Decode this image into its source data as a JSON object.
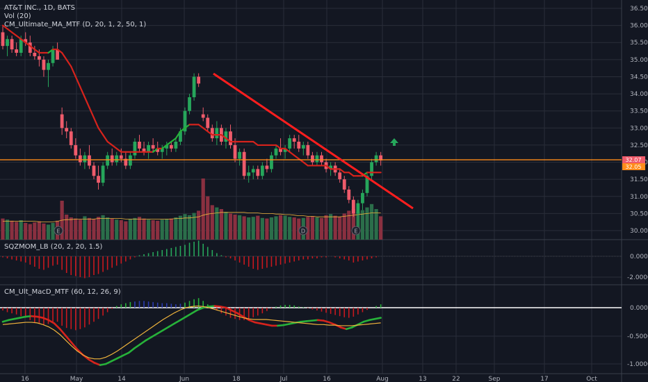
{
  "header": {
    "symbol_line": "AT&T INC., 1D, BATS",
    "vol_line": "Vol (20)",
    "ma_line": "CM_Ultimate_MA_MTF (D, 20, 1, 2, 50, 1)"
  },
  "panes": {
    "sqzmom": {
      "label": "SQZMOM_LB (20, 2, 20, 1.5)",
      "ticks": [
        "0.0000",
        "-2.0000"
      ]
    },
    "macd": {
      "label": "CM_Ult_MacD_MTF (60, 12, 26, 9)",
      "ticks": [
        "0.0000",
        "-0.5000",
        "-1.0000"
      ]
    }
  },
  "price_axis": {
    "ticks": [
      "36.50",
      "36.00",
      "35.50",
      "35.00",
      "34.50",
      "34.00",
      "33.50",
      "33.00",
      "32.50",
      "32.00",
      "31.50",
      "31.00",
      "30.50",
      "30.00"
    ],
    "tag_upper": "32.07",
    "tag_lower": "32.05"
  },
  "time_axis": {
    "ticks": [
      "16",
      "May",
      "14",
      "Jun",
      "18",
      "Jul",
      "16",
      "Aug",
      "13",
      "22",
      "Sep",
      "17",
      "Oct"
    ]
  },
  "events": [
    "E",
    "D",
    "E"
  ],
  "colors": {
    "background": "#131722",
    "up": "#26a65b",
    "down": "#ef5b6b",
    "ma_red": "#d6231c",
    "ma_green": "#27b23a",
    "trendline": "#ff1e1e",
    "horizontal": "#ff8c1a",
    "macd_signal": "#f0b43c",
    "volume_up": "#2b6e4a",
    "volume_down": "#8a3040"
  },
  "chart_data": {
    "type": "candlestick",
    "symbol": "AT&T INC.",
    "interval": "1D",
    "price_range": [
      29.8,
      36.8
    ],
    "horizontal_level": 32.07,
    "arrow_up_at": 32.55,
    "candles": [
      [
        35.8,
        36.0,
        35.3,
        35.4
      ],
      [
        35.4,
        35.7,
        35.1,
        35.6
      ],
      [
        35.6,
        35.7,
        35.2,
        35.3
      ],
      [
        35.3,
        35.5,
        35.1,
        35.2
      ],
      [
        35.2,
        35.7,
        35.1,
        35.6
      ],
      [
        35.6,
        35.8,
        35.4,
        35.5
      ],
      [
        35.5,
        35.7,
        35.1,
        35.2
      ],
      [
        35.2,
        35.4,
        35.0,
        35.1
      ],
      [
        35.1,
        35.3,
        34.8,
        35.0
      ],
      [
        35.0,
        35.1,
        34.5,
        34.7
      ],
      [
        34.7,
        35.0,
        34.2,
        34.9
      ],
      [
        34.9,
        35.4,
        34.8,
        35.3
      ],
      [
        35.3,
        35.5,
        35.0,
        35.0
      ],
      [
        33.4,
        33.6,
        32.8,
        33.0
      ],
      [
        33.0,
        33.2,
        32.7,
        32.9
      ],
      [
        32.9,
        33.0,
        32.4,
        32.5
      ],
      [
        32.5,
        32.7,
        32.1,
        32.2
      ],
      [
        32.2,
        32.4,
        31.9,
        32.0
      ],
      [
        32.0,
        32.3,
        31.8,
        32.2
      ],
      [
        32.2,
        32.5,
        31.8,
        31.9
      ],
      [
        31.9,
        32.0,
        31.5,
        31.6
      ],
      [
        31.6,
        31.9,
        31.2,
        31.4
      ],
      [
        31.4,
        32.0,
        31.3,
        31.9
      ],
      [
        31.9,
        32.3,
        31.8,
        32.2
      ],
      [
        32.2,
        32.4,
        31.9,
        32.0
      ],
      [
        32.0,
        32.3,
        31.9,
        32.2
      ],
      [
        32.2,
        32.4,
        32.0,
        32.1
      ],
      [
        32.1,
        32.3,
        31.8,
        31.9
      ],
      [
        31.9,
        32.3,
        31.8,
        32.2
      ],
      [
        32.2,
        32.7,
        32.1,
        32.6
      ],
      [
        32.6,
        32.8,
        32.3,
        32.4
      ],
      [
        32.4,
        32.6,
        32.2,
        32.3
      ],
      [
        32.3,
        32.6,
        32.1,
        32.5
      ],
      [
        32.5,
        32.7,
        32.3,
        32.4
      ],
      [
        32.4,
        32.6,
        32.2,
        32.3
      ],
      [
        32.3,
        32.5,
        32.1,
        32.4
      ],
      [
        32.4,
        32.6,
        32.2,
        32.5
      ],
      [
        32.5,
        32.6,
        32.3,
        32.4
      ],
      [
        32.4,
        32.7,
        32.3,
        32.6
      ],
      [
        32.6,
        33.0,
        32.5,
        32.9
      ],
      [
        32.9,
        33.6,
        32.8,
        33.5
      ],
      [
        33.5,
        34.0,
        33.4,
        33.9
      ],
      [
        33.9,
        34.6,
        33.8,
        34.5
      ],
      [
        34.5,
        34.6,
        34.2,
        34.3
      ],
      [
        33.4,
        33.6,
        33.2,
        33.3
      ],
      [
        33.3,
        33.4,
        32.9,
        33.0
      ],
      [
        33.0,
        33.1,
        32.6,
        32.7
      ],
      [
        32.7,
        33.2,
        32.5,
        33.0
      ],
      [
        33.0,
        33.1,
        32.5,
        32.6
      ],
      [
        32.6,
        33.0,
        32.4,
        32.9
      ],
      [
        32.9,
        33.1,
        32.4,
        32.5
      ],
      [
        32.5,
        32.7,
        32.0,
        32.1
      ],
      [
        32.1,
        32.4,
        31.9,
        32.3
      ],
      [
        32.3,
        32.4,
        31.5,
        31.6
      ],
      [
        31.6,
        31.9,
        31.4,
        31.7
      ],
      [
        31.7,
        31.9,
        31.5,
        31.8
      ],
      [
        31.8,
        31.9,
        31.5,
        31.6
      ],
      [
        31.6,
        32.0,
        31.5,
        31.9
      ],
      [
        31.9,
        32.1,
        31.7,
        31.8
      ],
      [
        31.8,
        32.3,
        31.7,
        32.2
      ],
      [
        32.2,
        32.5,
        32.1,
        32.4
      ],
      [
        32.4,
        32.7,
        32.2,
        32.3
      ],
      [
        32.3,
        32.5,
        32.1,
        32.4
      ],
      [
        32.4,
        32.8,
        32.3,
        32.7
      ],
      [
        32.7,
        32.8,
        32.4,
        32.6
      ],
      [
        32.6,
        32.8,
        32.3,
        32.4
      ],
      [
        32.4,
        32.6,
        32.2,
        32.5
      ],
      [
        32.5,
        32.6,
        32.1,
        32.2
      ],
      [
        32.2,
        32.3,
        31.9,
        32.0
      ],
      [
        32.0,
        32.3,
        31.9,
        32.2
      ],
      [
        32.2,
        32.3,
        31.9,
        32.0
      ],
      [
        32.0,
        32.1,
        31.7,
        31.8
      ],
      [
        31.8,
        32.0,
        31.6,
        31.9
      ],
      [
        31.9,
        32.0,
        31.6,
        31.7
      ],
      [
        31.7,
        31.8,
        31.4,
        31.5
      ],
      [
        31.5,
        31.6,
        31.1,
        31.2
      ],
      [
        31.2,
        31.3,
        30.8,
        30.9
      ],
      [
        30.9,
        31.0,
        30.4,
        30.5
      ],
      [
        30.5,
        30.9,
        30.0,
        30.8
      ],
      [
        30.8,
        31.2,
        30.6,
        31.1
      ],
      [
        31.1,
        31.7,
        31.0,
        31.6
      ],
      [
        31.6,
        32.1,
        31.5,
        32.0
      ],
      [
        32.0,
        32.3,
        31.9,
        32.2
      ],
      [
        32.2,
        32.3,
        31.9,
        32.05
      ]
    ],
    "volume": [
      38,
      36,
      34,
      32,
      35,
      30,
      28,
      31,
      33,
      29,
      27,
      30,
      34,
      70,
      45,
      40,
      38,
      36,
      42,
      39,
      37,
      41,
      44,
      40,
      38,
      36,
      35,
      33,
      37,
      39,
      41,
      38,
      36,
      35,
      34,
      36,
      37,
      38,
      40,
      43,
      46,
      44,
      48,
      52,
      110,
      78,
      62,
      58,
      55,
      50,
      47,
      45,
      44,
      42,
      40,
      41,
      43,
      39,
      38,
      40,
      42,
      44,
      43,
      41,
      40,
      38,
      39,
      41,
      42,
      40,
      39,
      44,
      46,
      43,
      41,
      47,
      52,
      55,
      50,
      53,
      58,
      64,
      55,
      42
    ],
    "vol_ma": [
      33,
      33,
      33,
      33,
      33,
      33,
      33,
      33,
      32,
      32,
      32,
      32,
      33,
      35,
      36,
      36,
      37,
      37,
      37,
      37,
      37,
      38,
      38,
      38,
      38,
      38,
      38,
      37,
      37,
      37,
      37,
      37,
      37,
      37,
      37,
      37,
      37,
      37,
      38,
      38,
      39,
      39,
      40,
      41,
      44,
      46,
      47,
      48,
      49,
      49,
      49,
      49,
      49,
      49,
      48,
      48,
      48,
      47,
      47,
      47,
      46,
      46,
      45,
      45,
      44,
      43,
      43,
      42,
      42,
      41,
      41,
      41,
      41,
      41,
      41,
      42,
      43,
      44,
      45,
      46,
      47,
      48,
      48,
      48
    ],
    "ma_line": [
      36.0,
      35.9,
      35.8,
      35.7,
      35.6,
      35.5,
      35.4,
      35.3,
      35.2,
      35.2,
      35.2,
      35.3,
      35.3,
      35.2,
      35.0,
      34.8,
      34.5,
      34.2,
      33.9,
      33.6,
      33.3,
      33.0,
      32.8,
      32.6,
      32.5,
      32.4,
      32.3,
      32.3,
      32.3,
      32.3,
      32.3,
      32.3,
      32.3,
      32.3,
      32.4,
      32.4,
      32.5,
      32.6,
      32.7,
      32.9,
      33.0,
      33.1,
      33.1,
      33.1,
      33.0,
      32.9,
      32.8,
      32.8,
      32.8,
      32.7,
      32.6,
      32.6,
      32.6,
      32.6,
      32.6,
      32.6,
      32.5,
      32.5,
      32.5,
      32.5,
      32.5,
      32.4,
      32.4,
      32.3,
      32.2,
      32.1,
      32.0,
      31.9,
      31.9,
      31.9,
      31.9,
      31.9,
      31.8,
      31.8,
      31.8,
      31.7,
      31.7,
      31.6,
      31.6,
      31.6,
      31.7,
      31.7,
      31.7,
      31.7
    ],
    "sqzmom": [
      -0.1,
      -0.2,
      -0.3,
      -0.4,
      -0.5,
      -0.6,
      -0.8,
      -1.0,
      -1.2,
      -1.3,
      -1.1,
      -0.9,
      -0.8,
      -1.3,
      -1.6,
      -1.8,
      -1.9,
      -2.0,
      -2.1,
      -2.0,
      -1.8,
      -1.7,
      -1.5,
      -1.3,
      -1.1,
      -0.9,
      -0.7,
      -0.5,
      -0.3,
      -0.1,
      0.1,
      0.2,
      0.3,
      0.4,
      0.5,
      0.6,
      0.7,
      0.8,
      0.9,
      1.0,
      1.1,
      1.3,
      1.4,
      1.5,
      1.2,
      0.9,
      0.6,
      0.3,
      0.1,
      -0.1,
      -0.2,
      -0.4,
      -0.6,
      -0.8,
      -1.0,
      -1.2,
      -1.3,
      -1.2,
      -1.1,
      -1.0,
      -0.9,
      -0.8,
      -0.7,
      -0.6,
      -0.5,
      -0.4,
      -0.3,
      -0.3,
      -0.2,
      -0.2,
      -0.1,
      -0.1,
      0.0,
      -0.1,
      -0.2,
      -0.3,
      -0.4,
      -0.6,
      -0.5,
      -0.4,
      -0.3,
      -0.2,
      -0.1,
      0.0
    ],
    "macd_hist": [
      -0.05,
      -0.08,
      -0.1,
      -0.12,
      -0.15,
      -0.18,
      -0.22,
      -0.26,
      -0.28,
      -0.3,
      -0.29,
      -0.27,
      -0.25,
      -0.32,
      -0.36,
      -0.38,
      -0.4,
      -0.38,
      -0.35,
      -0.3,
      -0.25,
      -0.2,
      -0.14,
      -0.08,
      -0.02,
      0.03,
      0.06,
      0.08,
      0.1,
      0.11,
      0.12,
      0.12,
      0.11,
      0.1,
      0.09,
      0.08,
      0.08,
      0.07,
      0.06,
      0.07,
      0.09,
      0.12,
      0.15,
      0.17,
      0.12,
      0.06,
      0.0,
      -0.05,
      -0.1,
      -0.14,
      -0.18,
      -0.2,
      -0.22,
      -0.22,
      -0.2,
      -0.17,
      -0.14,
      -0.1,
      -0.06,
      -0.02,
      0.02,
      0.04,
      0.05,
      0.05,
      0.04,
      0.02,
      0.01,
      -0.01,
      -0.03,
      -0.05,
      -0.07,
      -0.09,
      -0.11,
      -0.13,
      -0.15,
      -0.17,
      -0.18,
      -0.16,
      -0.12,
      -0.08,
      -0.04,
      0.0,
      0.03,
      0.06
    ],
    "macd_line": [
      -0.25,
      -0.22,
      -0.2,
      -0.18,
      -0.16,
      -0.15,
      -0.16,
      -0.18,
      -0.22,
      -0.28,
      -0.38,
      -0.5,
      -0.62,
      -0.74,
      -0.84,
      -0.92,
      -0.98,
      -1.02,
      -1.0,
      -0.95,
      -0.9,
      -0.85,
      -0.8,
      -0.72,
      -0.65,
      -0.58,
      -0.52,
      -0.46,
      -0.4,
      -0.34,
      -0.28,
      -0.22,
      -0.16,
      -0.1,
      -0.04,
      0.0,
      0.02,
      0.03,
      0.02,
      0.0,
      -0.05,
      -0.1,
      -0.16,
      -0.22,
      -0.26,
      -0.28,
      -0.3,
      -0.32,
      -0.32,
      -0.31,
      -0.29,
      -0.27,
      -0.25,
      -0.24,
      -0.23,
      -0.22,
      -0.23,
      -0.26,
      -0.3,
      -0.35,
      -0.38,
      -0.35,
      -0.3,
      -0.25,
      -0.22,
      -0.2,
      -0.18
    ],
    "macd_signal": [
      -0.3,
      -0.29,
      -0.28,
      -0.27,
      -0.26,
      -0.26,
      -0.27,
      -0.3,
      -0.34,
      -0.4,
      -0.48,
      -0.58,
      -0.68,
      -0.77,
      -0.84,
      -0.89,
      -0.91,
      -0.91,
      -0.88,
      -0.83,
      -0.77,
      -0.7,
      -0.63,
      -0.56,
      -0.49,
      -0.42,
      -0.35,
      -0.28,
      -0.21,
      -0.15,
      -0.09,
      -0.04,
      0.0,
      0.02,
      0.03,
      0.02,
      0.0,
      -0.03,
      -0.06,
      -0.09,
      -0.12,
      -0.15,
      -0.18,
      -0.2,
      -0.21,
      -0.21,
      -0.21,
      -0.22,
      -0.23,
      -0.24,
      -0.25,
      -0.26,
      -0.27,
      -0.28,
      -0.29,
      -0.3,
      -0.3,
      -0.31,
      -0.31,
      -0.32,
      -0.32,
      -0.32,
      -0.31,
      -0.3,
      -0.29,
      -0.28,
      -0.27
    ]
  }
}
